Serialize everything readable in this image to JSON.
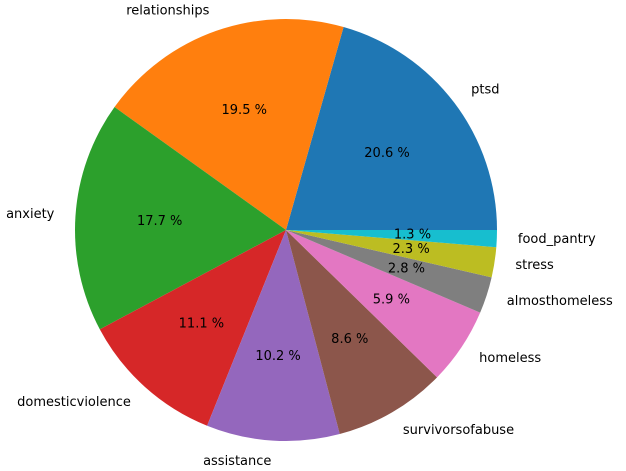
{
  "chart_data": {
    "type": "pie",
    "categories": [
      "ptsd",
      "relationships",
      "anxiety",
      "domesticviolence",
      "assistance",
      "survivorsofabuse",
      "homeless",
      "almosthomeless",
      "stress",
      "food_pantry"
    ],
    "values": [
      20.6,
      19.5,
      17.7,
      11.1,
      10.2,
      8.6,
      5.9,
      2.8,
      2.3,
      1.3
    ],
    "value_labels": [
      "20.6 %",
      "19.5 %",
      "17.7 %",
      "11.1 %",
      "10.2 %",
      "8.6 %",
      "5.9 %",
      "2.8 %",
      "2.3 %",
      "1.3 %"
    ],
    "colors": [
      "#1f77b4",
      "#ff7f0e",
      "#2ca02c",
      "#d62728",
      "#9467bd",
      "#8c564b",
      "#e377c2",
      "#7f7f7f",
      "#bcbd22",
      "#17becf"
    ],
    "start_angle_deg": 0,
    "direction": "counterclockwise",
    "title": "",
    "legend": "none"
  }
}
